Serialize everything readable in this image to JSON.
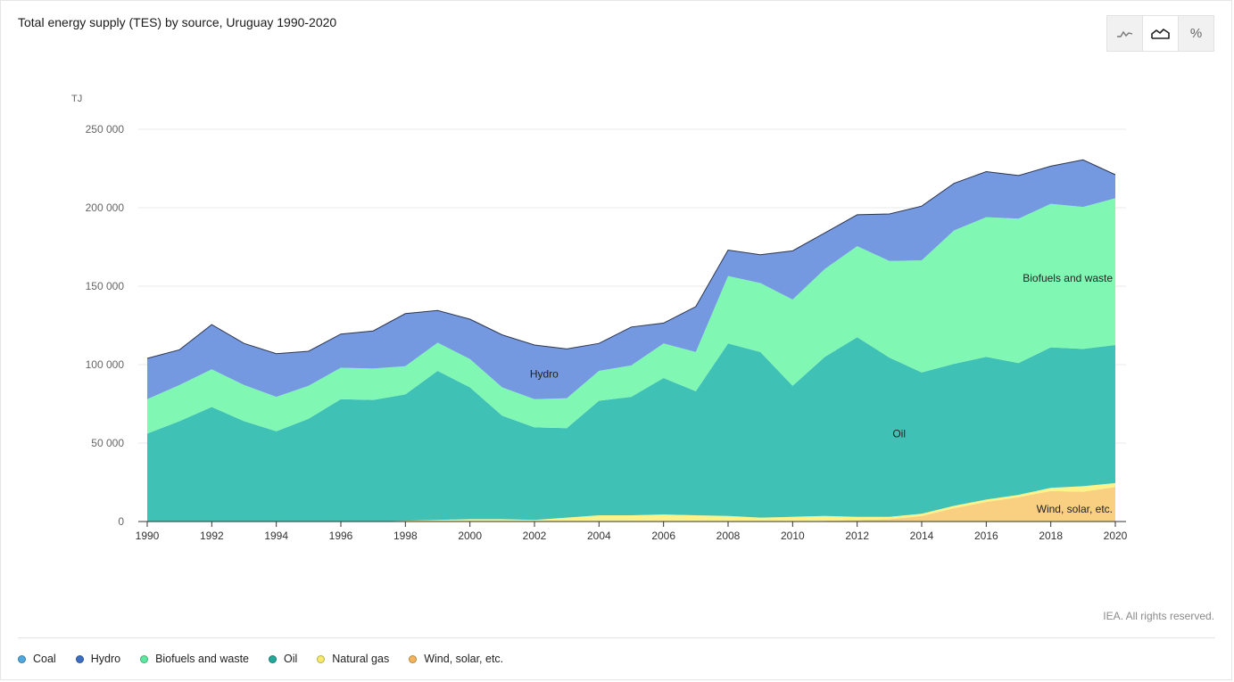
{
  "header": {
    "title": "Total energy supply (TES) by source, Uruguay 1990-2020"
  },
  "view_toggle": {
    "options": [
      {
        "icon": "line-chart-icon",
        "active": false
      },
      {
        "icon": "area-chart-icon",
        "active": true
      },
      {
        "icon": "percent-icon",
        "label": "%",
        "active": false
      }
    ]
  },
  "footer": {
    "copyright": "IEA. All rights reserved."
  },
  "legend": [
    {
      "label": "Coal",
      "color": "#4ea8de"
    },
    {
      "label": "Hydro",
      "color": "#3c6fc4"
    },
    {
      "label": "Biofuels and waste",
      "color": "#5ee7a0"
    },
    {
      "label": "Oil",
      "color": "#22a89a"
    },
    {
      "label": "Natural gas",
      "color": "#f5ea6a"
    },
    {
      "label": "Wind, solar, etc.",
      "color": "#f3b45c"
    }
  ],
  "chart_data": {
    "type": "area",
    "stacked": true,
    "title": "Total energy supply (TES) by source, Uruguay 1990-2020",
    "ylabel": "TJ",
    "ylim": [
      0,
      250000
    ],
    "yticks": [
      0,
      50000,
      100000,
      150000,
      200000,
      250000
    ],
    "ytick_labels": [
      "0",
      "50 000",
      "100 000",
      "150 000",
      "200 000",
      "250 000"
    ],
    "xticks": [
      1990,
      1992,
      1994,
      1996,
      1998,
      2000,
      2002,
      2004,
      2006,
      2008,
      2010,
      2012,
      2014,
      2016,
      2018,
      2020
    ],
    "x": [
      1990,
      1991,
      1992,
      1993,
      1994,
      1995,
      1996,
      1997,
      1998,
      1999,
      2000,
      2001,
      2002,
      2003,
      2004,
      2005,
      2006,
      2007,
      2008,
      2009,
      2010,
      2011,
      2012,
      2013,
      2014,
      2015,
      2016,
      2017,
      2018,
      2019,
      2020
    ],
    "grid": true,
    "series": [
      {
        "name": "Wind, solar, etc.",
        "color": "#f9cf82",
        "values": [
          0,
          0,
          0,
          0,
          0,
          0,
          0,
          0,
          0,
          0,
          0,
          0,
          0,
          0,
          0,
          0,
          0,
          0,
          0,
          0,
          0,
          500,
          1000,
          1500,
          3500,
          8500,
          12500,
          15500,
          19500,
          19000,
          22000
        ]
      },
      {
        "name": "Natural gas",
        "color": "#fdf38a",
        "values": [
          0,
          0,
          0,
          0,
          0,
          0,
          0,
          0,
          500,
          1000,
          1500,
          1500,
          1000,
          2500,
          4000,
          4000,
          4500,
          4000,
          3500,
          2500,
          3000,
          3000,
          2000,
          1500,
          1500,
          1500,
          1500,
          1500,
          2000,
          3500,
          2500
        ]
      },
      {
        "name": "Oil",
        "color": "#3fc2b5",
        "values": [
          56000,
          64000,
          73000,
          64000,
          57500,
          65500,
          78000,
          77500,
          80500,
          95000,
          84000,
          66000,
          59000,
          57000,
          73000,
          75500,
          87000,
          79000,
          110000,
          105500,
          83500,
          101500,
          114500,
          101500,
          90000,
          90500,
          91000,
          84000,
          89500,
          87500,
          88000
        ]
      },
      {
        "name": "Biofuels and waste",
        "color": "#80f8b4",
        "values": [
          22000,
          23000,
          24000,
          23000,
          22000,
          21000,
          20000,
          20000,
          18000,
          18000,
          18000,
          18000,
          18000,
          19000,
          19000,
          20000,
          22000,
          25000,
          43000,
          44000,
          55000,
          56000,
          58000,
          61500,
          71500,
          85000,
          89000,
          92000,
          91500,
          90500,
          93500
        ]
      },
      {
        "name": "Hydro",
        "color": "#7599e0",
        "values": [
          26000,
          22500,
          28500,
          26500,
          27500,
          22000,
          21500,
          24000,
          33500,
          20500,
          25500,
          33500,
          34500,
          31500,
          17500,
          24500,
          13000,
          29000,
          16500,
          18000,
          31000,
          23000,
          20000,
          30000,
          34500,
          30000,
          29000,
          27500,
          24000,
          30000,
          15000
        ]
      },
      {
        "name": "Coal",
        "color": "#4ea8de",
        "values": [
          0,
          0,
          0,
          0,
          0,
          0,
          0,
          0,
          0,
          0,
          0,
          0,
          0,
          0,
          0,
          0,
          0,
          0,
          0,
          0,
          0,
          0,
          0,
          0,
          0,
          0,
          0,
          0,
          0,
          0,
          0
        ]
      }
    ],
    "annotations": [
      {
        "text": "Hydro",
        "x": 2002.3,
        "y": 94000
      },
      {
        "text": "Oil",
        "x": 2013.3,
        "y": 56000
      },
      {
        "text": "Biofuels and waste",
        "x": 2020,
        "y": 155000,
        "anchor": "end"
      },
      {
        "text": "Wind, solar, etc.",
        "x": 2020,
        "y": 8000,
        "anchor": "end"
      }
    ]
  }
}
